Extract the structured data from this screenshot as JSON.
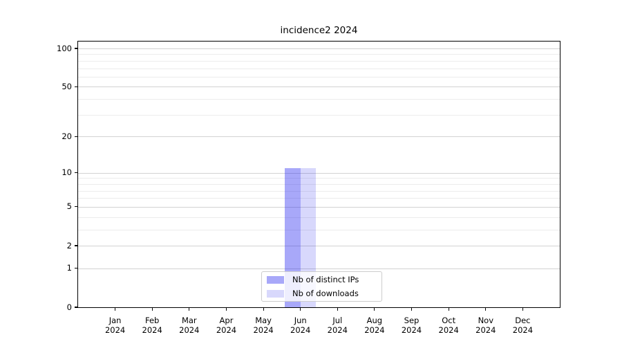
{
  "title": "incidence2 2024",
  "chart_data": {
    "type": "bar",
    "title": "incidence2 2024",
    "categories": [
      "Jan",
      "Feb",
      "Mar",
      "Apr",
      "May",
      "Jun",
      "Jul",
      "Aug",
      "Sep",
      "Oct",
      "Nov",
      "Dec"
    ],
    "category_year": "2024",
    "series": [
      {
        "name": "Nb of distinct IPs",
        "color": "rgba(25,25,240,0.38)",
        "values": [
          0,
          0,
          0,
          0,
          0,
          11,
          0,
          0,
          0,
          0,
          0,
          0
        ]
      },
      {
        "name": "Nb of downloads",
        "color": "rgba(25,25,240,0.17)",
        "values": [
          0,
          0,
          0,
          0,
          0,
          11,
          0,
          0,
          0,
          0,
          0,
          0
        ]
      }
    ],
    "y_axis": {
      "scale": "log10(1+v)",
      "ticks": [
        0,
        1,
        2,
        5,
        10,
        20,
        50,
        100
      ],
      "minor_gridlines": [
        3,
        4,
        6,
        7,
        8,
        9,
        30,
        40,
        60,
        70,
        80,
        90
      ]
    },
    "x_axis": {
      "tick_label_format": "month over year"
    },
    "legend": {
      "position": "lower center"
    },
    "grid": true,
    "colors": {
      "major_grid": "#d2d2d2",
      "minor_grid": "#ececec",
      "spine": "#000000",
      "background": "#ffffff"
    }
  }
}
